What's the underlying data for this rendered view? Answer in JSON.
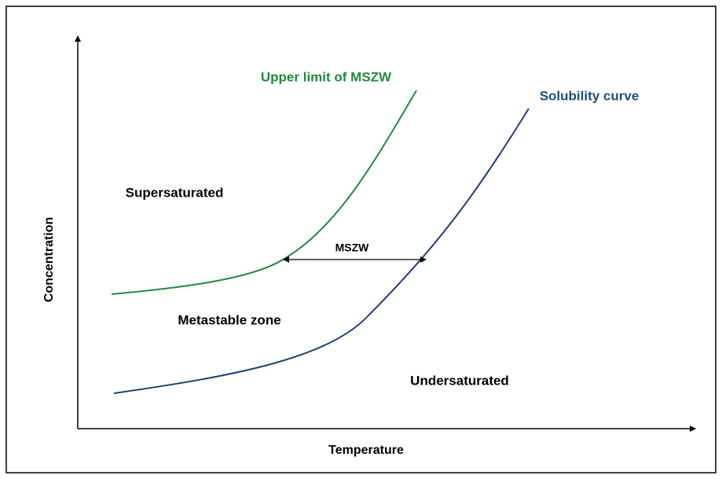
{
  "axes": {
    "y_label": "Concentration",
    "x_label": "Temperature"
  },
  "curves": {
    "upper": "Upper limit of MSZW",
    "solubility": "Solubility curve"
  },
  "regions": {
    "supersaturated": "Supersaturated",
    "metastable": "Metastable zone",
    "undersaturated": "Undersaturated"
  },
  "width_label": "MSZW"
}
